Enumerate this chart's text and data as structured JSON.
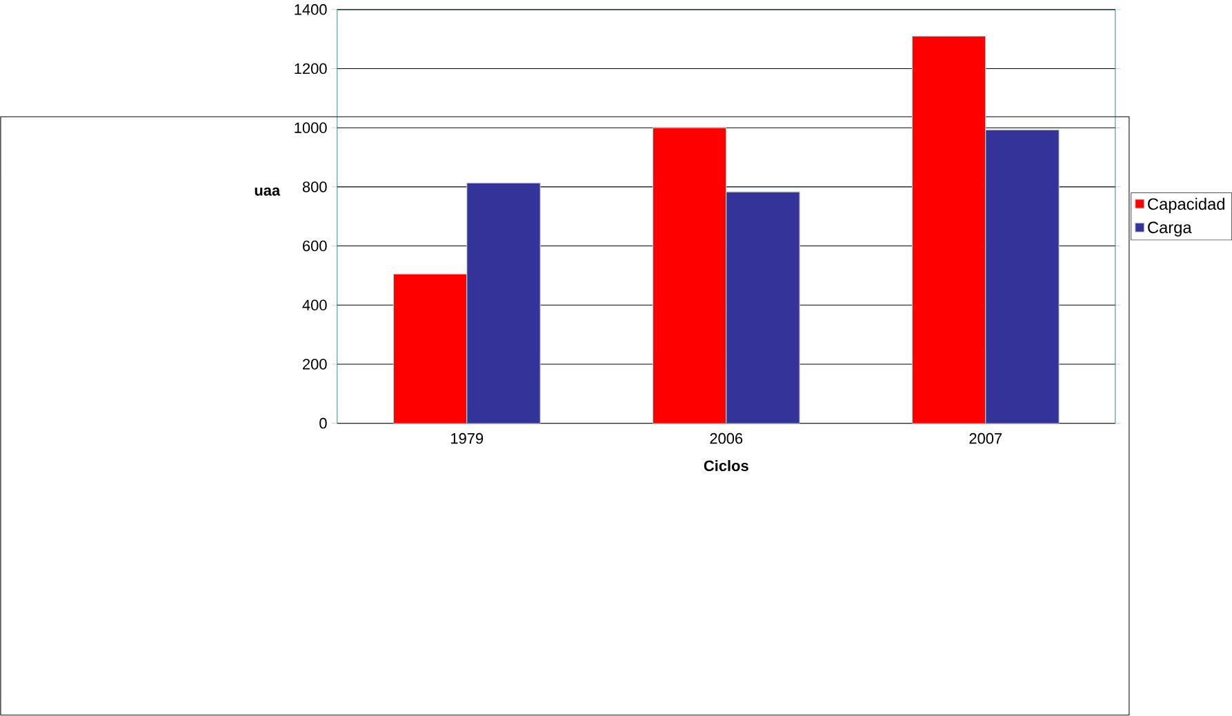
{
  "chart_data": {
    "type": "bar",
    "xlabel": "Ciclos",
    "ylabel": "uaa",
    "categories": [
      "1979",
      "2006",
      "2007"
    ],
    "series": [
      {
        "name": "Capacidad",
        "color": "#ff0000",
        "values": [
          505,
          1000,
          1310
        ]
      },
      {
        "name": "Carga",
        "color": "#333399",
        "values": [
          813,
          783,
          993
        ]
      }
    ],
    "ylim": [
      0,
      1400
    ],
    "yticks": [
      0,
      200,
      400,
      600,
      800,
      1000,
      1200,
      1400
    ],
    "grid": "y",
    "legend": "right"
  }
}
